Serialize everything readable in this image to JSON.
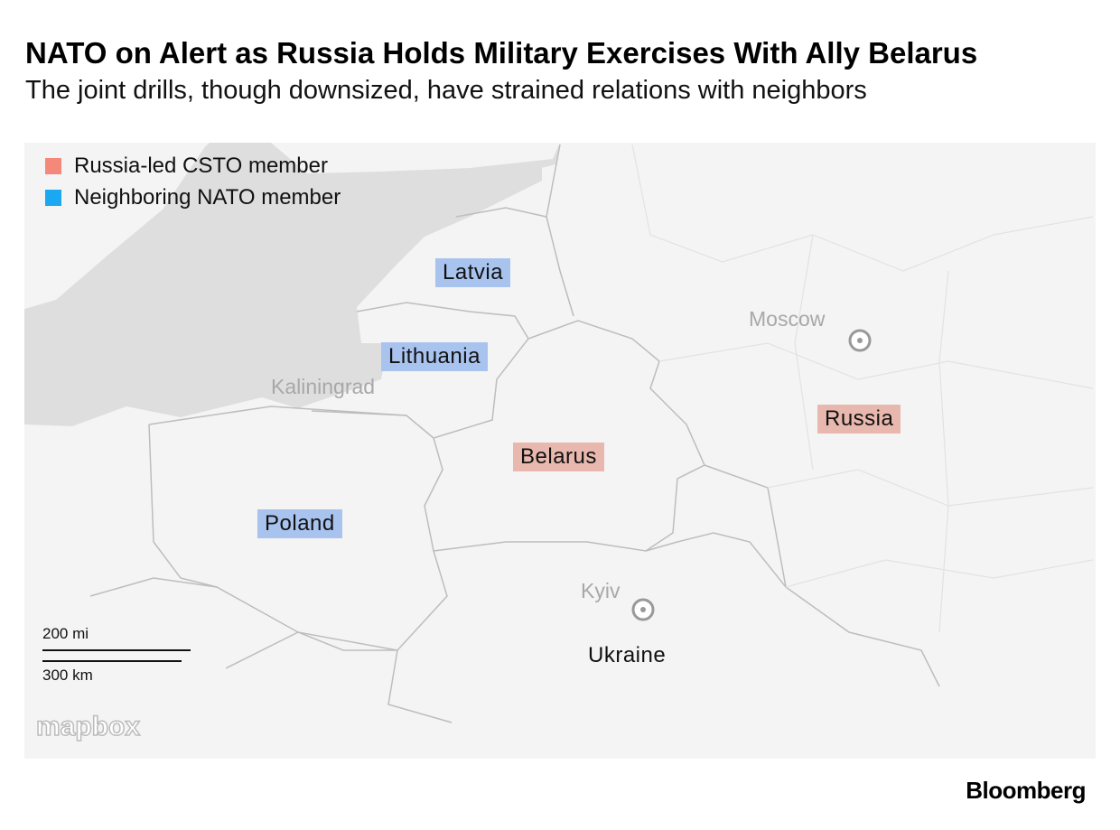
{
  "header": {
    "title": "NATO on Alert as Russia Holds Military Exercises With Ally Belarus",
    "subtitle": "The joint drills, though downsized, have strained relations with neighbors"
  },
  "legend": [
    {
      "label": "Russia-led CSTO member",
      "color": "#f4887a"
    },
    {
      "label": "Neighboring NATO member",
      "color": "#1aa9f0"
    }
  ],
  "map": {
    "countries": [
      {
        "label": "Latvia",
        "color": "#a9c3ef"
      },
      {
        "label": "Lithuania",
        "color": "#a9c3ef"
      },
      {
        "label": "Belarus",
        "color": "#e8b8ae"
      },
      {
        "label": "Russia",
        "color": "#e8b8ae"
      },
      {
        "label": "Poland",
        "color": "#a9c3ef"
      },
      {
        "label": "Ukraine"
      }
    ],
    "cities": [
      {
        "label": "Moscow"
      },
      {
        "label": "Kaliningrad"
      },
      {
        "label": "Kyiv"
      }
    ],
    "scale": {
      "miles": "200 mi",
      "km": "300 km"
    },
    "attribution": "mapbox"
  },
  "footer": {
    "source": "Bloomberg"
  }
}
